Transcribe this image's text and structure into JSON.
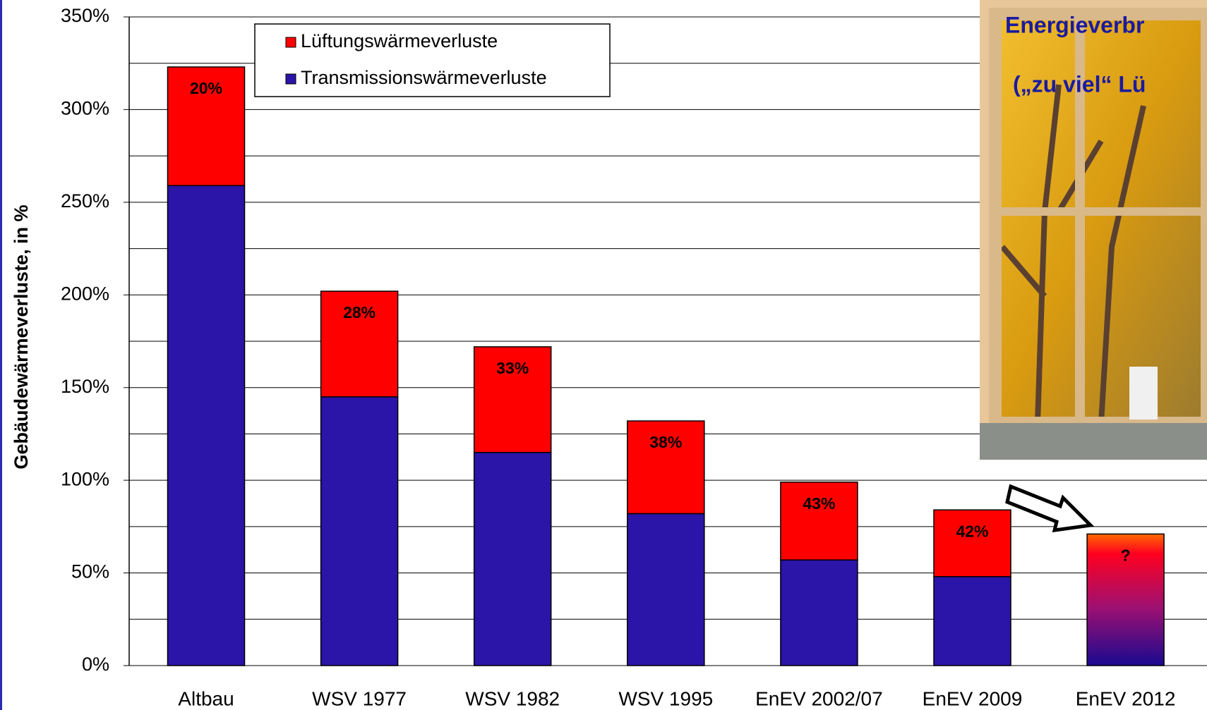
{
  "chart_data": {
    "type": "stacked-bar",
    "y_label": "Gebäudewärmeverluste, in %",
    "categories": [
      "Altbau",
      "WSV 1977",
      "WSV 1982",
      "WSV 1995",
      "EnEV 2002/07",
      "EnEV 2009",
      "EnEV 2012"
    ],
    "series": [
      {
        "name": "Transmissionswärmeverluste",
        "color": "#2b14a8",
        "values": [
          259,
          145,
          115,
          82,
          57,
          48,
          null
        ]
      },
      {
        "name": "Lüftungswärmeverluste",
        "color": "#ff0000",
        "values": [
          64,
          57,
          57,
          50,
          42,
          36,
          null
        ]
      }
    ],
    "uncertain_values": [
      null,
      null,
      null,
      null,
      null,
      null,
      71
    ],
    "share_labels": [
      "20%",
      "28%",
      "33%",
      "38%",
      "43%",
      "42%",
      "?"
    ],
    "ylim": [
      0,
      350
    ],
    "yticks": [
      {
        "value": 0,
        "label": "0%"
      },
      {
        "value": 50,
        "label": "50%"
      },
      {
        "value": 100,
        "label": "100%"
      },
      {
        "value": 150,
        "label": "150%"
      },
      {
        "value": 200,
        "label": "200%"
      },
      {
        "value": 250,
        "label": "250%"
      },
      {
        "value": 300,
        "label": "300%"
      },
      {
        "value": 350,
        "label": "350%"
      }
    ],
    "minor_yticks": [
      25,
      75,
      125,
      175,
      225,
      275,
      325
    ],
    "grid": true,
    "legend": "top-left",
    "image_caption": [
      "Energieverbr",
      "(„zu viel“ Lü"
    ]
  }
}
